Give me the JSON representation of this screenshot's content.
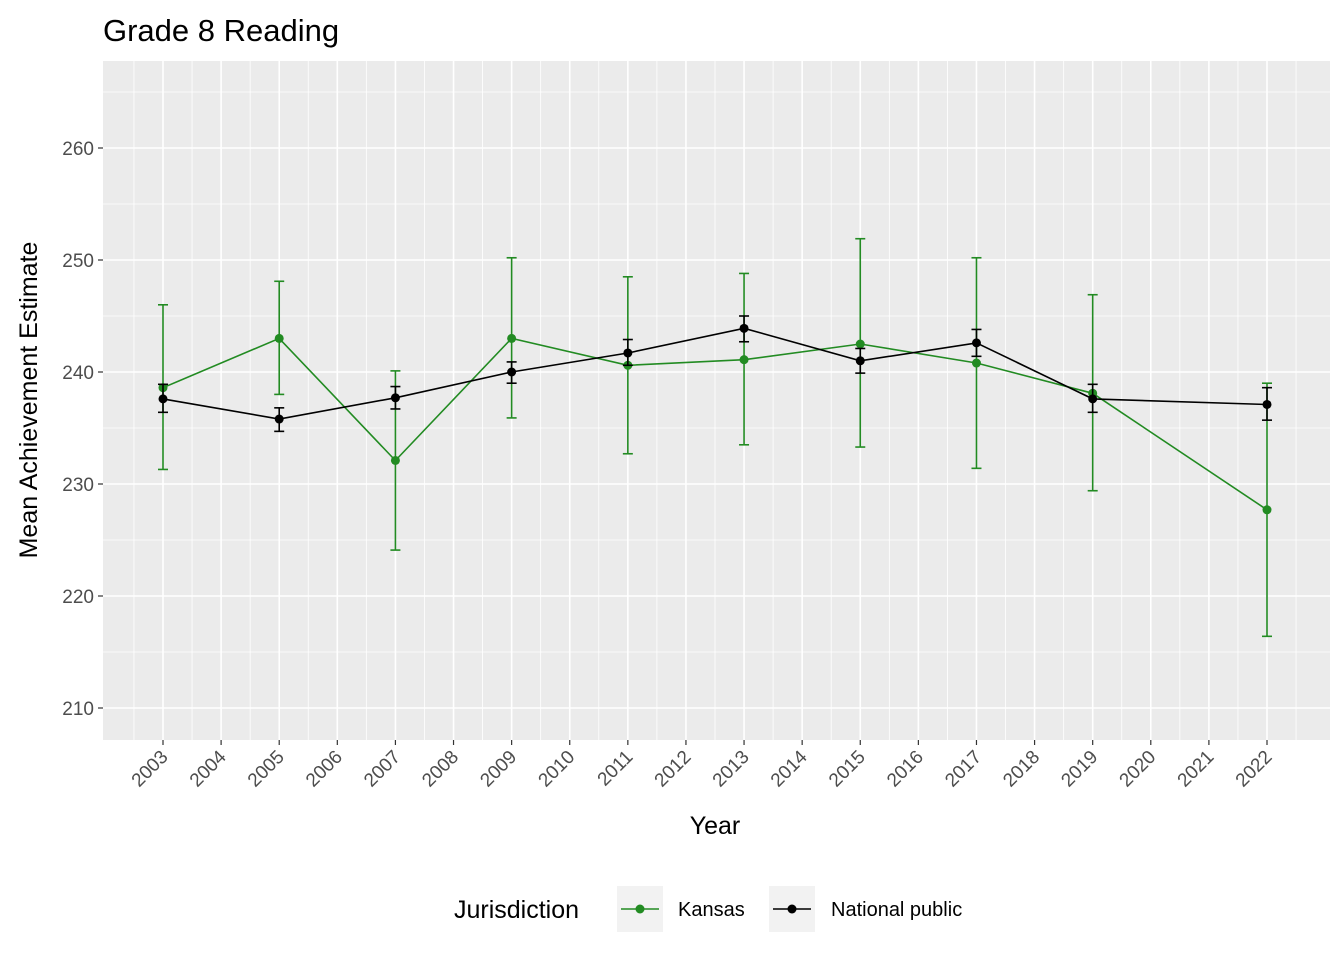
{
  "chart_data": {
    "type": "line",
    "title": "Grade 8 Reading",
    "xlabel": "Year",
    "ylabel": "Mean Achievement Estimate",
    "x": [
      2003,
      2004,
      2005,
      2006,
      2007,
      2008,
      2009,
      2010,
      2011,
      2012,
      2013,
      2014,
      2015,
      2016,
      2017,
      2018,
      2019,
      2020,
      2021,
      2022
    ],
    "ylim": [
      207,
      267
    ],
    "yticks": [
      210,
      220,
      230,
      240,
      250,
      260
    ],
    "grid": true,
    "legend": {
      "title": "Jurisdiction",
      "position": "bottom"
    },
    "series": [
      {
        "name": "Kansas",
        "color": "#228B22",
        "points": [
          {
            "x": 2003,
            "y": 238.6,
            "lo": 231.3,
            "hi": 246.0
          },
          {
            "x": 2005,
            "y": 243.0,
            "lo": 238.0,
            "hi": 248.1
          },
          {
            "x": 2007,
            "y": 232.1,
            "lo": 224.1,
            "hi": 240.1
          },
          {
            "x": 2009,
            "y": 243.0,
            "lo": 235.9,
            "hi": 250.2
          },
          {
            "x": 2011,
            "y": 240.6,
            "lo": 232.7,
            "hi": 248.5
          },
          {
            "x": 2013,
            "y": 241.1,
            "lo": 233.5,
            "hi": 248.8
          },
          {
            "x": 2015,
            "y": 242.5,
            "lo": 233.3,
            "hi": 251.9
          },
          {
            "x": 2017,
            "y": 240.8,
            "lo": 231.4,
            "hi": 250.2
          },
          {
            "x": 2019,
            "y": 238.1,
            "lo": 229.4,
            "hi": 246.9
          },
          {
            "x": 2022,
            "y": 227.7,
            "lo": 216.4,
            "hi": 239.0
          }
        ]
      },
      {
        "name": "National public",
        "color": "#000000",
        "points": [
          {
            "x": 2003,
            "y": 237.6,
            "lo": 236.4,
            "hi": 238.9
          },
          {
            "x": 2005,
            "y": 235.8,
            "lo": 234.7,
            "hi": 236.8
          },
          {
            "x": 2007,
            "y": 237.7,
            "lo": 236.7,
            "hi": 238.7
          },
          {
            "x": 2009,
            "y": 240.0,
            "lo": 239.0,
            "hi": 240.9
          },
          {
            "x": 2011,
            "y": 241.7,
            "lo": 240.6,
            "hi": 242.9
          },
          {
            "x": 2013,
            "y": 243.9,
            "lo": 242.7,
            "hi": 245.0
          },
          {
            "x": 2015,
            "y": 241.0,
            "lo": 239.9,
            "hi": 242.1
          },
          {
            "x": 2017,
            "y": 242.6,
            "lo": 241.4,
            "hi": 243.8
          },
          {
            "x": 2019,
            "y": 237.6,
            "lo": 236.4,
            "hi": 238.9
          },
          {
            "x": 2022,
            "y": 237.1,
            "lo": 235.7,
            "hi": 238.6
          }
        ]
      }
    ]
  }
}
